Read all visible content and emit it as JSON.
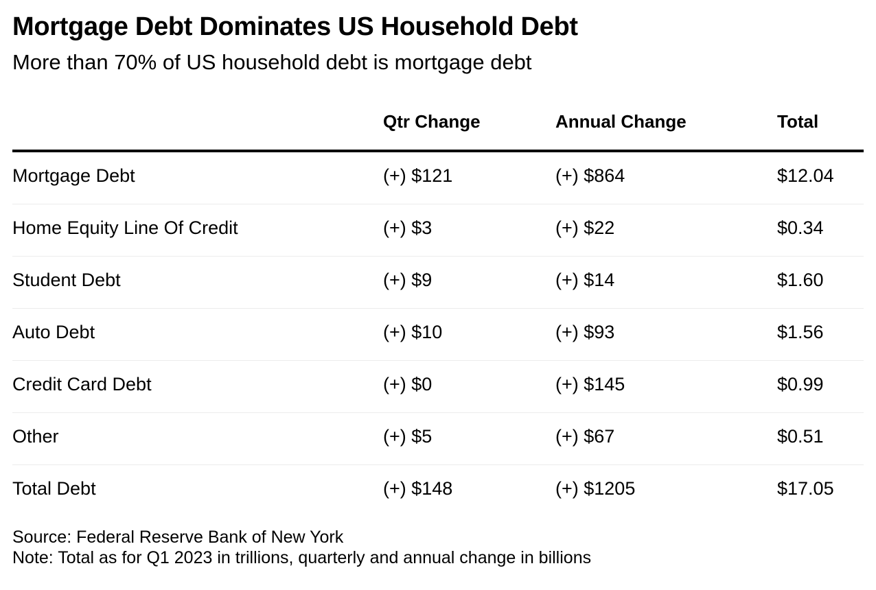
{
  "chart_data": {
    "type": "table",
    "title": "Mortgage Debt Dominates US Household Debt",
    "subtitle": "More than 70% of US household debt is mortgage debt",
    "columns": [
      "",
      "Qtr Change",
      "Annual Change",
      "Total"
    ],
    "rows": [
      [
        "Mortgage Debt",
        "(+) $121",
        "(+) $864",
        "$12.04"
      ],
      [
        "Home Equity Line Of Credit",
        "(+) $3",
        "(+) $22",
        "$0.34"
      ],
      [
        "Student Debt",
        "(+) $9",
        "(+) $14",
        "$1.60"
      ],
      [
        "Auto Debt",
        "(+) $10",
        "(+) $93",
        "$1.56"
      ],
      [
        "Credit Card Debt",
        "(+) $0",
        "(+) $145",
        "$0.99"
      ],
      [
        "Other",
        "(+) $5",
        "(+) $67",
        "$0.51"
      ],
      [
        "Total Debt",
        "(+) $148",
        "(+) $1205",
        "$17.05"
      ]
    ],
    "source": "Source: Federal Reserve Bank of New York",
    "note": "Note: Total as for Q1 2023 in trillions, quarterly and annual change in billions"
  },
  "colors": {
    "text": "#000000",
    "header_rule": "#000000",
    "row_divider": "#ececec",
    "background": "#ffffff"
  }
}
